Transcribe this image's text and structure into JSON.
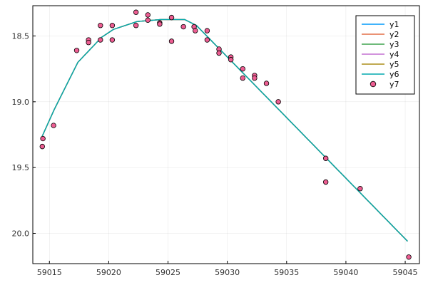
{
  "chart_data": {
    "type": "line",
    "title": "",
    "xlabel": "",
    "ylabel": "",
    "xlim": [
      59013.6,
      59046.2
    ],
    "ylim": [
      20.23,
      18.27
    ],
    "y_reversed": true,
    "grid": true,
    "legend_position": "top-right",
    "x_ticks": [
      59015,
      59020,
      59025,
      59030,
      59035,
      59040,
      59045
    ],
    "y_ticks": [
      18.5,
      19.0,
      19.5,
      20.0
    ],
    "x_tick_labels": [
      "59015",
      "59020",
      "59025",
      "59030",
      "59035",
      "59040",
      "59045"
    ],
    "y_tick_labels": [
      "18.5",
      "19.0",
      "19.5",
      "20.0"
    ],
    "series": [
      {
        "name": "y1",
        "kind": "line",
        "color": "#009AFA",
        "x": [
          59014.4,
          59015.4,
          59017.4,
          59019.4,
          59020.4,
          59022.4,
          59024.4,
          59026.4,
          59027.4,
          59045.2
        ],
        "y": [
          19.26,
          19.06,
          18.7,
          18.51,
          18.45,
          18.39,
          18.375,
          18.375,
          18.42,
          20.06
        ]
      },
      {
        "name": "y2",
        "kind": "line",
        "color": "#E36F47",
        "x": [
          59014.4,
          59015.4,
          59017.4,
          59019.4,
          59020.4,
          59022.4,
          59024.4,
          59026.4,
          59027.4,
          59045.2
        ],
        "y": [
          19.26,
          19.06,
          18.7,
          18.51,
          18.45,
          18.39,
          18.375,
          18.375,
          18.42,
          20.06
        ]
      },
      {
        "name": "y3",
        "kind": "line",
        "color": "#3EA44E",
        "x": [
          59014.4,
          59015.4,
          59017.4,
          59019.4,
          59020.4,
          59022.4,
          59024.4,
          59026.4,
          59027.4,
          59045.2
        ],
        "y": [
          19.26,
          19.06,
          18.7,
          18.51,
          18.45,
          18.39,
          18.375,
          18.375,
          18.42,
          20.06
        ]
      },
      {
        "name": "y4",
        "kind": "line",
        "color": "#C371D2",
        "x": [
          59014.4,
          59015.4,
          59017.4,
          59019.4,
          59020.4,
          59022.4,
          59024.4,
          59026.4,
          59027.4,
          59045.2
        ],
        "y": [
          19.26,
          19.06,
          18.7,
          18.51,
          18.45,
          18.39,
          18.375,
          18.375,
          18.42,
          20.06
        ]
      },
      {
        "name": "y5",
        "kind": "line",
        "color": "#AC8E18",
        "x": [
          59014.4,
          59015.4,
          59017.4,
          59019.4,
          59020.4,
          59022.4,
          59024.4,
          59026.4,
          59027.4,
          59045.2
        ],
        "y": [
          19.26,
          19.06,
          18.7,
          18.51,
          18.45,
          18.39,
          18.375,
          18.375,
          18.42,
          20.06
        ]
      },
      {
        "name": "y6",
        "kind": "line",
        "color": "#00A9AD",
        "x": [
          59014.4,
          59015.4,
          59017.4,
          59019.4,
          59020.4,
          59022.4,
          59024.4,
          59026.4,
          59027.4,
          59045.2
        ],
        "y": [
          19.26,
          19.06,
          18.7,
          18.51,
          18.45,
          18.39,
          18.375,
          18.375,
          18.42,
          20.06
        ]
      },
      {
        "name": "y7",
        "kind": "scatter",
        "color": "#ED5D92",
        "x": [
          59014.4,
          59014.45,
          59015.35,
          59017.3,
          59018.3,
          59018.3,
          59019.3,
          59019.3,
          59020.3,
          59020.3,
          59022.3,
          59022.3,
          59023.3,
          59023.3,
          59024.3,
          59024.3,
          59025.3,
          59025.3,
          59026.3,
          59027.2,
          59027.3,
          59028.3,
          59028.3,
          59029.3,
          59029.3,
          59030.3,
          59030.3,
          59031.3,
          59031.3,
          59032.3,
          59032.3,
          59033.3,
          59034.3,
          59038.3,
          59038.3,
          59041.2,
          59045.3
        ],
        "y": [
          19.34,
          19.28,
          19.18,
          18.61,
          18.53,
          18.55,
          18.42,
          18.53,
          18.42,
          18.53,
          18.32,
          18.42,
          18.34,
          18.38,
          18.4,
          18.41,
          18.36,
          18.54,
          18.43,
          18.43,
          18.46,
          18.46,
          18.53,
          18.6,
          18.63,
          18.66,
          18.68,
          18.75,
          18.82,
          18.8,
          18.82,
          18.86,
          19.0,
          19.43,
          19.61,
          19.66,
          20.18
        ]
      }
    ]
  }
}
